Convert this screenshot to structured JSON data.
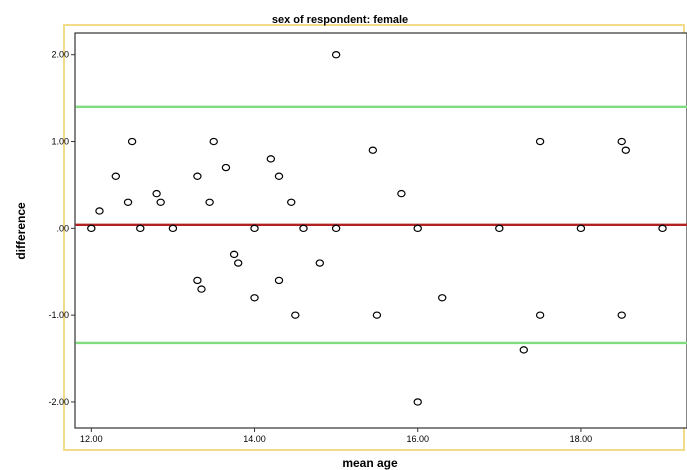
{
  "chart_data": {
    "type": "scatter",
    "title": "sex of respondent: female",
    "xlabel": "mean age",
    "ylabel": "difference",
    "xlim": [
      11.8,
      19.3
    ],
    "ylim": [
      -2.3,
      2.25
    ],
    "x_ticks": [
      {
        "value": 12,
        "label": "12.00"
      },
      {
        "value": 14,
        "label": "14.00"
      },
      {
        "value": 16,
        "label": "16.00"
      },
      {
        "value": 18,
        "label": "18.00"
      }
    ],
    "y_ticks": [
      {
        "value": 2,
        "label": "2.00"
      },
      {
        "value": 1,
        "label": "1.00"
      },
      {
        "value": 0,
        "label": ".00"
      },
      {
        "value": -1,
        "label": "-1.00"
      },
      {
        "value": -2,
        "label": "-2.00"
      }
    ],
    "grid": false,
    "reference_lines": [
      {
        "value": 1.4,
        "color": "#7fdc7f"
      },
      {
        "value": 0.04,
        "color": "#b22222"
      },
      {
        "value": -1.32,
        "color": "#7fdc7f"
      }
    ],
    "colors": {
      "plot_border": "#333333",
      "frame": "#f2dc8a",
      "marker": "#000000"
    },
    "points": [
      {
        "x": 12.0,
        "y": 0.0
      },
      {
        "x": 12.1,
        "y": 0.2
      },
      {
        "x": 12.3,
        "y": 0.6
      },
      {
        "x": 12.45,
        "y": 0.3
      },
      {
        "x": 12.5,
        "y": 1.0
      },
      {
        "x": 12.6,
        "y": 0.0
      },
      {
        "x": 12.8,
        "y": 0.4
      },
      {
        "x": 12.85,
        "y": 0.3
      },
      {
        "x": 13.0,
        "y": 0.0
      },
      {
        "x": 13.3,
        "y": 0.6
      },
      {
        "x": 13.3,
        "y": -0.6
      },
      {
        "x": 13.35,
        "y": -0.7
      },
      {
        "x": 13.45,
        "y": 0.3
      },
      {
        "x": 13.5,
        "y": 1.0
      },
      {
        "x": 13.65,
        "y": 0.7
      },
      {
        "x": 13.75,
        "y": -0.3
      },
      {
        "x": 13.8,
        "y": -0.4
      },
      {
        "x": 14.0,
        "y": 0.0
      },
      {
        "x": 14.0,
        "y": -0.8
      },
      {
        "x": 14.2,
        "y": 0.8
      },
      {
        "x": 14.3,
        "y": 0.6
      },
      {
        "x": 14.3,
        "y": -0.6
      },
      {
        "x": 14.45,
        "y": 0.3
      },
      {
        "x": 14.5,
        "y": -1.0
      },
      {
        "x": 14.6,
        "y": 0.0
      },
      {
        "x": 14.8,
        "y": -0.4
      },
      {
        "x": 15.0,
        "y": 2.0
      },
      {
        "x": 15.0,
        "y": 0.0
      },
      {
        "x": 15.45,
        "y": 0.9
      },
      {
        "x": 15.5,
        "y": -1.0
      },
      {
        "x": 15.8,
        "y": 0.4
      },
      {
        "x": 16.0,
        "y": 0.0
      },
      {
        "x": 16.0,
        "y": -2.0
      },
      {
        "x": 16.3,
        "y": -0.8
      },
      {
        "x": 17.0,
        "y": 0.0
      },
      {
        "x": 17.3,
        "y": -1.4
      },
      {
        "x": 17.5,
        "y": 1.0
      },
      {
        "x": 17.5,
        "y": -1.0
      },
      {
        "x": 18.0,
        "y": 0.0
      },
      {
        "x": 18.5,
        "y": 1.0
      },
      {
        "x": 18.5,
        "y": -1.0
      },
      {
        "x": 18.55,
        "y": 0.9
      },
      {
        "x": 19.0,
        "y": 0.0
      }
    ]
  }
}
